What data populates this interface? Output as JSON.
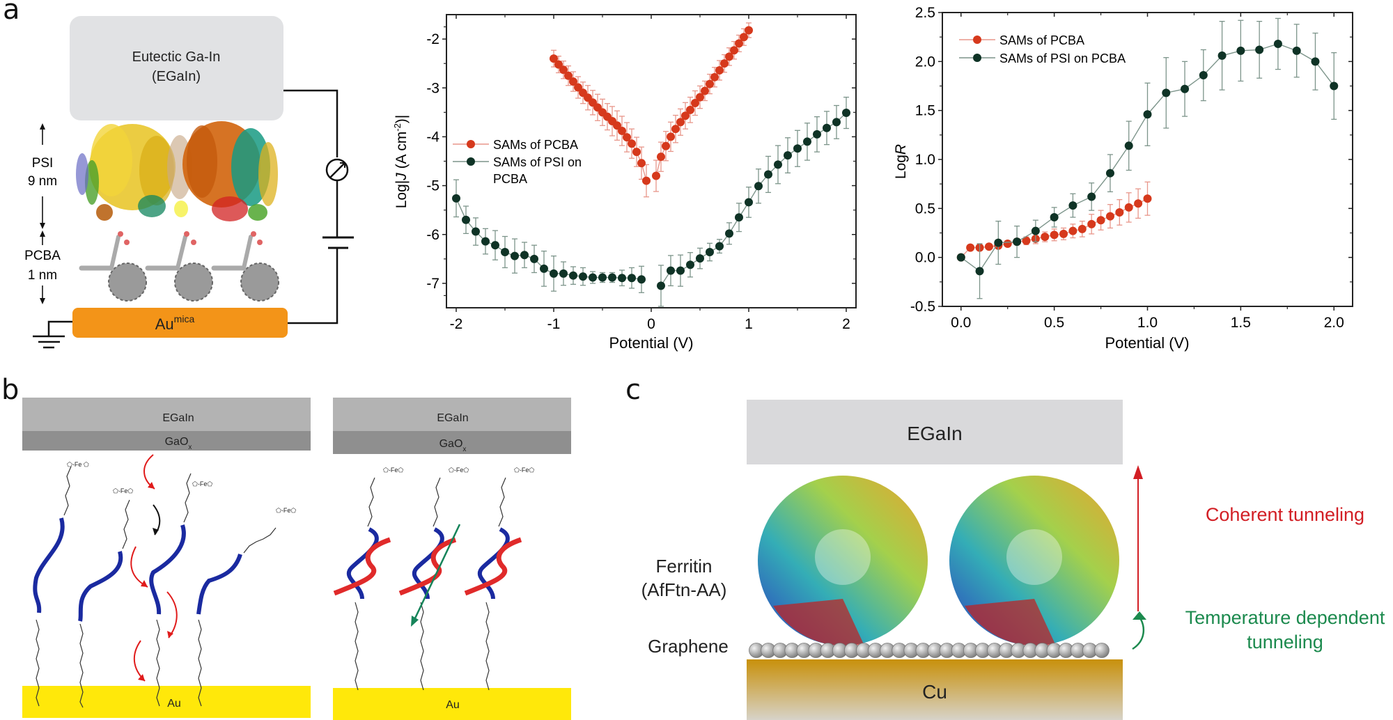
{
  "panels": {
    "a": {
      "letter": "a",
      "schematic": {
        "top_electrode": [
          "Eutectic Ga-In",
          "(EGaIn)"
        ],
        "psi_label": [
          "PSI",
          "9 nm"
        ],
        "pcba_label": [
          "PCBA",
          "1 nm"
        ],
        "bottom_electrode": "Au",
        "bottom_electrode_sup": "mica",
        "colors": {
          "top_electrode": "#e1e2e4",
          "bottom_electrode": "#f39418",
          "wire": "#111111"
        }
      }
    },
    "b": {
      "letter": "b",
      "left": {
        "top": "EGaIn",
        "oxide": "GaO",
        "oxide_sub": "x",
        "bottom": "Au"
      },
      "right": {
        "top": "EGaIn",
        "oxide": "GaO",
        "oxide_sub": "x",
        "bottom": "Au"
      },
      "colors": {
        "egain": "#b3b3b3",
        "oxide": "#8f8f8f",
        "au": "#ffe80a",
        "ssDNA": "#1a2aa0",
        "cDNA": "#e02a2a",
        "hop_arrow": "#e01b1b",
        "tunnel_arrow": "#16845a"
      }
    },
    "c": {
      "letter": "c",
      "top": "EGaIn",
      "protein_label": [
        "Ferritin",
        "(AfFtn-AA)"
      ],
      "graphene_label": "Graphene",
      "bottom": "Cu",
      "coherent_label": "Coherent tunneling",
      "temp_label": [
        "Temperature dependent",
        "tunneling"
      ],
      "colors": {
        "coherent": "#d21e24",
        "temp": "#1c8a4e",
        "egain": "#d9d9db",
        "cu_top": "#c8900a",
        "cu_bottom": "#d7d3c9"
      }
    }
  },
  "chart_data": [
    {
      "type": "scatter",
      "title": "",
      "xlabel": "Potential (V)",
      "ylabel": "Log|J (A cm-2)|",
      "ylabel_parts": [
        "Log|",
        "J",
        " (A cm",
        "-2",
        ")|"
      ],
      "xlim": [
        -2.1,
        2.1
      ],
      "ylim": [
        -7.5,
        -1.5
      ],
      "xticks": [
        -2,
        -1,
        0,
        1,
        2
      ],
      "xtick_labels": [
        "-2",
        "-1",
        "0",
        "1",
        "2"
      ],
      "yticks": [
        -2,
        -3,
        -4,
        -5,
        -6,
        -7
      ],
      "ytick_labels": [
        "-2",
        "-3",
        "-4",
        "-5",
        "-6",
        "-7"
      ],
      "grid": false,
      "legend_position": "center-left",
      "series": [
        {
          "name": "SAMs of PCBA",
          "color": "#d6391c",
          "err_color": "#e8968a",
          "segments": [
            {
              "x": [
                -1.0,
                -0.95,
                -0.9,
                -0.85,
                -0.8,
                -0.75,
                -0.7,
                -0.65,
                -0.6,
                -0.55,
                -0.5,
                -0.45,
                -0.4,
                -0.35,
                -0.3,
                -0.25,
                -0.2,
                -0.15,
                -0.1,
                -0.05
              ],
              "y": [
                -2.4,
                -2.52,
                -2.63,
                -2.75,
                -2.87,
                -2.99,
                -3.1,
                -3.2,
                -3.3,
                -3.4,
                -3.5,
                -3.59,
                -3.68,
                -3.77,
                -3.88,
                -4.01,
                -4.14,
                -4.31,
                -4.54,
                -4.9
              ],
              "err": [
                0.17,
                0.17,
                0.18,
                0.2,
                0.2,
                0.22,
                0.22,
                0.25,
                0.25,
                0.27,
                0.27,
                0.27,
                0.3,
                0.3,
                0.3,
                0.3,
                0.3,
                0.3,
                0.33,
                0.33
              ]
            },
            {
              "x": [
                0.05,
                0.1,
                0.15,
                0.2,
                0.25,
                0.3,
                0.35,
                0.4,
                0.45,
                0.5,
                0.55,
                0.6,
                0.65,
                0.7,
                0.75,
                0.8,
                0.85,
                0.9,
                0.95,
                1.0
              ],
              "y": [
                -4.8,
                -4.41,
                -4.19,
                -4.0,
                -3.84,
                -3.7,
                -3.57,
                -3.45,
                -3.31,
                -3.19,
                -3.06,
                -2.92,
                -2.78,
                -2.64,
                -2.5,
                -2.36,
                -2.23,
                -2.09,
                -1.96,
                -1.82
              ],
              "err": [
                0.32,
                0.3,
                0.3,
                0.3,
                0.28,
                0.27,
                0.27,
                0.26,
                0.25,
                0.23,
                0.2,
                0.2,
                0.2,
                0.2,
                0.18,
                0.18,
                0.18,
                0.17,
                0.17,
                0.15
              ]
            }
          ]
        },
        {
          "name": "SAMs of PSI on PCBA",
          "color": "#0f3326",
          "err_color": "#7c948a",
          "segments": [
            {
              "x": [
                -2.0,
                -1.9,
                -1.8,
                -1.7,
                -1.6,
                -1.5,
                -1.4,
                -1.3,
                -1.2,
                -1.1,
                -1.0,
                -0.9,
                -0.8,
                -0.7,
                -0.6,
                -0.5,
                -0.4,
                -0.3,
                -0.2,
                -0.1
              ],
              "y": [
                -5.26,
                -5.7,
                -5.94,
                -6.14,
                -6.22,
                -6.36,
                -6.44,
                -6.42,
                -6.5,
                -6.7,
                -6.8,
                -6.8,
                -6.84,
                -6.86,
                -6.88,
                -6.88,
                -6.88,
                -6.89,
                -6.89,
                -6.92
              ],
              "err": [
                0.38,
                0.28,
                0.28,
                0.26,
                0.3,
                0.32,
                0.35,
                0.26,
                0.28,
                0.36,
                0.36,
                0.24,
                0.18,
                0.18,
                0.12,
                0.1,
                0.1,
                0.16,
                0.21,
                0.27
              ]
            },
            {
              "x": [
                0.1,
                0.2,
                0.3,
                0.4,
                0.5,
                0.6,
                0.7,
                0.8,
                0.9,
                1.0,
                1.1,
                1.2,
                1.3,
                1.4,
                1.5,
                1.6,
                1.7,
                1.8,
                1.9,
                2.0
              ],
              "y": [
                -7.05,
                -6.74,
                -6.74,
                -6.62,
                -6.49,
                -6.36,
                -6.24,
                -5.98,
                -5.65,
                -5.34,
                -5.01,
                -4.77,
                -4.57,
                -4.38,
                -4.24,
                -4.1,
                -3.95,
                -3.82,
                -3.7,
                -3.51
              ],
              "err": [
                0.42,
                0.31,
                0.32,
                0.25,
                0.21,
                0.18,
                0.14,
                0.22,
                0.29,
                0.31,
                0.35,
                0.37,
                0.39,
                0.36,
                0.37,
                0.38,
                0.36,
                0.34,
                0.34,
                0.32
              ]
            }
          ]
        }
      ]
    },
    {
      "type": "line",
      "title": "",
      "xlabel": "Potential (V)",
      "ylabel": "LogR",
      "ylabel_parts": [
        "Log",
        "R"
      ],
      "xlim": [
        -0.1,
        2.1
      ],
      "ylim": [
        -0.5,
        2.5
      ],
      "xticks": [
        0.0,
        0.5,
        1.0,
        1.5,
        2.0
      ],
      "xtick_labels": [
        "0.0",
        "0.5",
        "1.0",
        "1.5",
        "2.0"
      ],
      "yticks": [
        -0.5,
        0.0,
        0.5,
        1.0,
        1.5,
        2.0,
        2.5
      ],
      "ytick_labels": [
        "-0.5",
        "0.0",
        "0.5",
        "1.0",
        "1.5",
        "2.0",
        "2.5"
      ],
      "grid": false,
      "legend_position": "top-left",
      "series": [
        {
          "name": "SAMs of PCBA",
          "color": "#d6391c",
          "err_color": "#e8968a",
          "segments": [
            {
              "x": [
                0.0,
                0.05,
                0.1,
                0.15,
                0.2,
                0.25,
                0.3,
                0.35,
                0.4,
                0.45,
                0.5,
                0.55,
                0.6,
                0.65,
                0.7,
                0.75,
                0.8,
                0.85,
                0.9,
                0.95,
                1.0
              ],
              "y": [
                0.0,
                0.1,
                0.1,
                0.11,
                0.12,
                0.14,
                0.16,
                0.17,
                0.19,
                0.21,
                0.23,
                0.24,
                0.27,
                0.29,
                0.34,
                0.38,
                0.42,
                0.46,
                0.51,
                0.55,
                0.6
              ],
              "err": [
                0.0,
                0.02,
                0.02,
                0.02,
                0.03,
                0.03,
                0.03,
                0.04,
                0.05,
                0.05,
                0.06,
                0.06,
                0.07,
                0.08,
                0.1,
                0.1,
                0.12,
                0.13,
                0.15,
                0.15,
                0.17
              ]
            }
          ]
        },
        {
          "name": "SAMs of PSI on PCBA",
          "color": "#0f3326",
          "err_color": "#7c948a",
          "segments": [
            {
              "x": [
                0.0,
                0.1,
                0.2,
                0.3,
                0.4,
                0.5,
                0.6,
                0.7,
                0.8,
                0.9,
                1.0,
                1.1,
                1.2,
                1.3,
                1.4,
                1.5,
                1.6,
                1.7,
                1.8,
                1.9,
                2.0
              ],
              "y": [
                0.0,
                -0.14,
                0.15,
                0.16,
                0.27,
                0.41,
                0.53,
                0.62,
                0.86,
                1.14,
                1.46,
                1.68,
                1.72,
                1.86,
                2.06,
                2.11,
                2.12,
                2.18,
                2.11,
                2.0,
                1.75
              ],
              "err": [
                0.0,
                0.28,
                0.22,
                0.16,
                0.11,
                0.1,
                0.12,
                0.14,
                0.19,
                0.25,
                0.32,
                0.36,
                0.28,
                0.26,
                0.35,
                0.31,
                0.29,
                0.26,
                0.27,
                0.29,
                0.34
              ]
            }
          ]
        }
      ]
    }
  ]
}
